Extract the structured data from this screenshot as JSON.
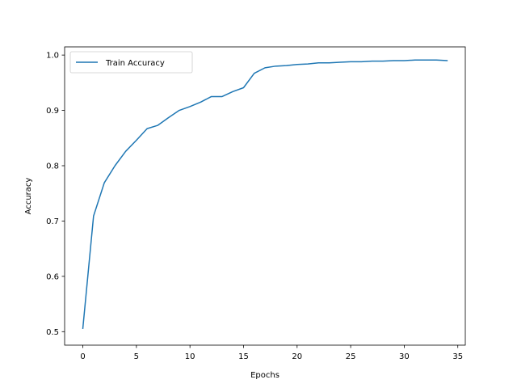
{
  "chart_data": {
    "type": "line",
    "xlabel": "Epochs",
    "ylabel": "Accuracy",
    "xlim": [
      -1.7,
      35.7
    ],
    "ylim": [
      0.4756,
      1.0148
    ],
    "xticks": [
      0,
      5,
      10,
      15,
      20,
      25,
      30,
      35
    ],
    "yticks": [
      0.5,
      0.6,
      0.7,
      0.8,
      0.9,
      1.0
    ],
    "ytick_labels": [
      "0.5",
      "0.6",
      "0.7",
      "0.8",
      "0.9",
      "1.0"
    ],
    "grid": false,
    "legend_position": "upper-left",
    "series": [
      {
        "name": "Train Accuracy",
        "color": "#1f77b4",
        "x": [
          0,
          1,
          2,
          3,
          4,
          5,
          6,
          7,
          8,
          9,
          10,
          11,
          12,
          13,
          14,
          15,
          16,
          17,
          18,
          19,
          20,
          21,
          22,
          23,
          24,
          25,
          26,
          27,
          28,
          29,
          30,
          31,
          32,
          33,
          34
        ],
        "y": [
          0.506,
          0.709,
          0.769,
          0.8,
          0.826,
          0.846,
          0.867,
          0.873,
          0.887,
          0.9,
          0.907,
          0.915,
          0.925,
          0.925,
          0.934,
          0.941,
          0.967,
          0.977,
          0.98,
          0.981,
          0.983,
          0.984,
          0.986,
          0.986,
          0.987,
          0.988,
          0.988,
          0.989,
          0.989,
          0.99,
          0.99,
          0.991,
          0.991,
          0.991,
          0.99
        ]
      }
    ]
  }
}
